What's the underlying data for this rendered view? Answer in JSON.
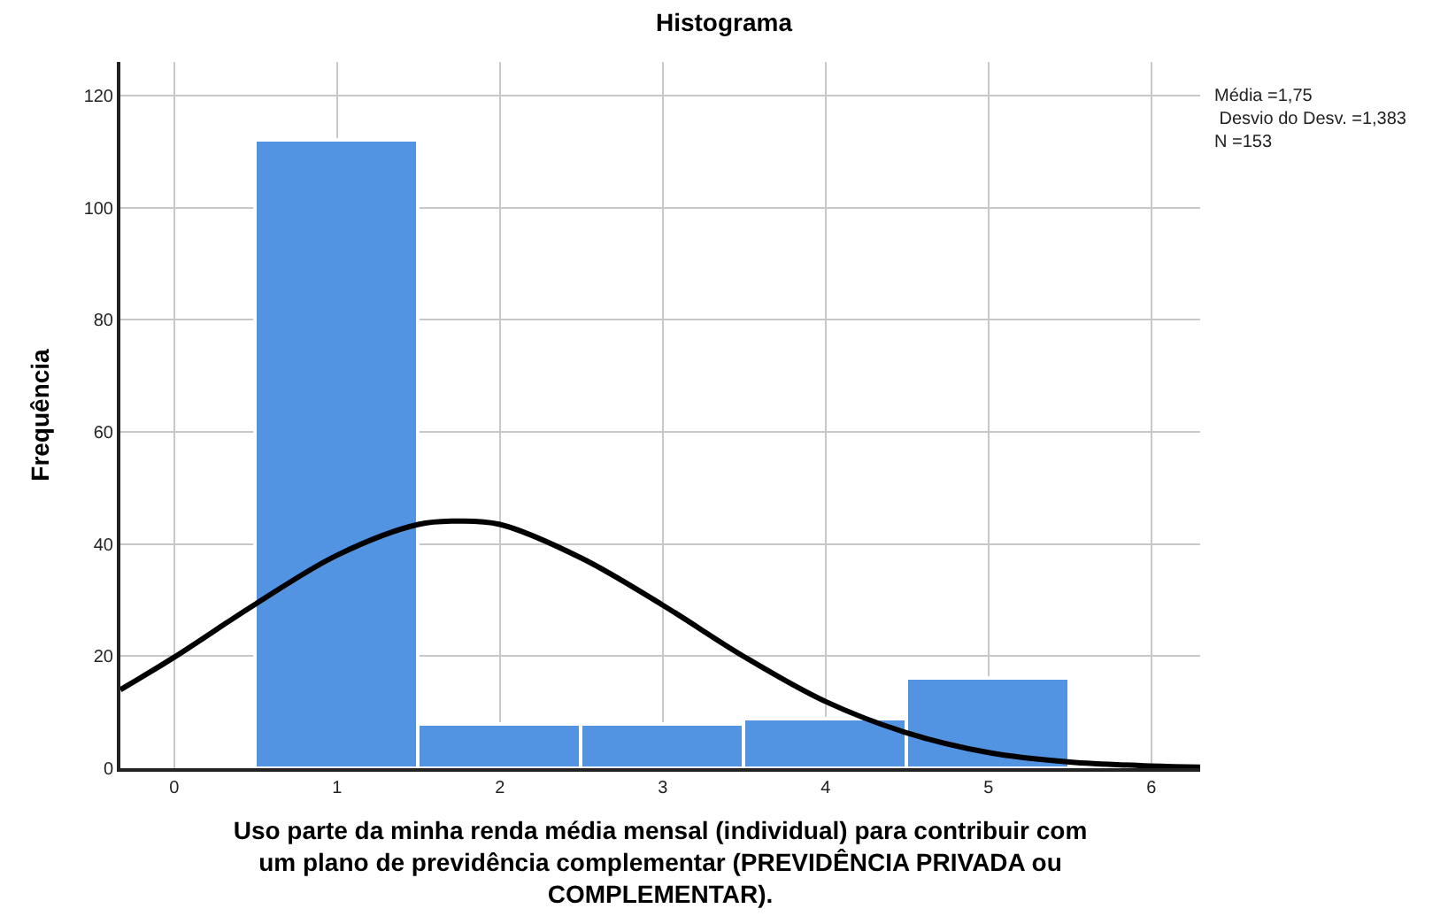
{
  "chart_data": {
    "type": "histogram",
    "title": "Histograma",
    "xlabel": "Uso parte da minha renda média mensal (individual) para contribuir com\num plano de previdência complementar (PREVIDÊNCIA PRIVADA ou\nCOMPLEMENTAR).",
    "ylabel": "Frequência",
    "series": [
      {
        "bins": [
          0.5,
          1.5,
          2.5,
          3.5,
          4.5,
          5.5
        ],
        "values": [
          112,
          8,
          8,
          9,
          16
        ],
        "color": "#5294e2"
      },
      {
        "type": "line",
        "x": [
          -0.33,
          0,
          0.5,
          1,
          1.5,
          1.75,
          2,
          2.5,
          3,
          3.5,
          4,
          4.5,
          5,
          5.5,
          6,
          6.3
        ],
        "values": [
          14,
          19.8,
          29.3,
          38,
          43.5,
          44.1,
          43.5,
          37.5,
          29.1,
          19.9,
          11.9,
          6.3,
          2.8,
          1.1,
          0.4,
          0.2
        ],
        "color": "#000000"
      }
    ],
    "xlim": [
      -0.33,
      6.3
    ],
    "xticks": [
      0,
      1,
      2,
      3,
      4,
      5,
      6
    ],
    "ylim": [
      0,
      126
    ],
    "yticks": [
      0,
      20,
      40,
      60,
      80,
      100,
      120
    ],
    "grid": true,
    "marker": "none",
    "line_style": "solid",
    "annotations": [
      "Média =1,75\n Desvio do Desv. =1,383\nN =153"
    ]
  }
}
